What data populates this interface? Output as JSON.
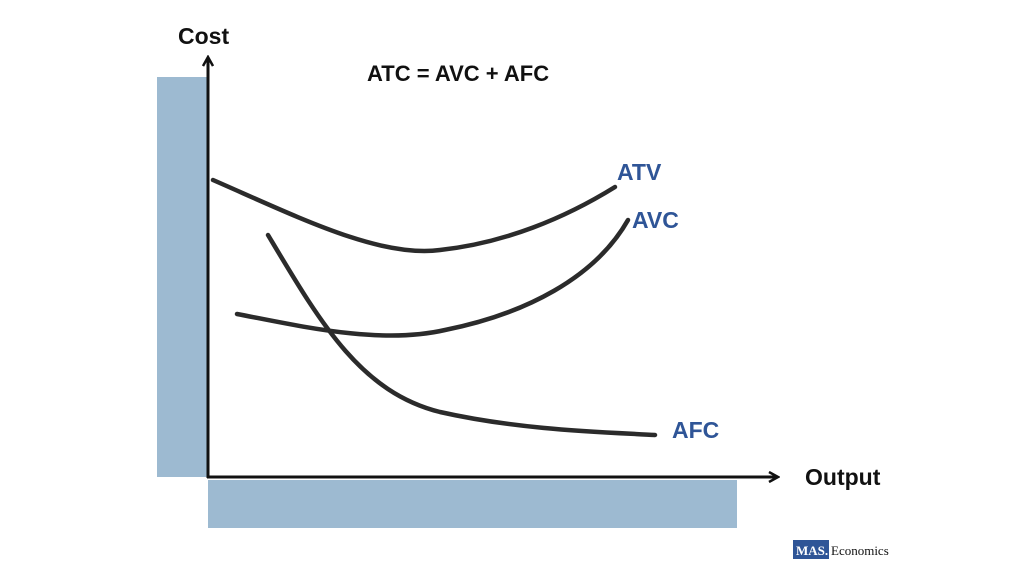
{
  "title": "ATC = AVC + AFC",
  "axes": {
    "y_label": "Cost",
    "x_label": "Output"
  },
  "curves": [
    {
      "label": "ATV"
    },
    {
      "label": "AVC"
    },
    {
      "label": "AFC"
    }
  ],
  "logo": {
    "brand": "MAS.",
    "text": "Economics"
  }
}
